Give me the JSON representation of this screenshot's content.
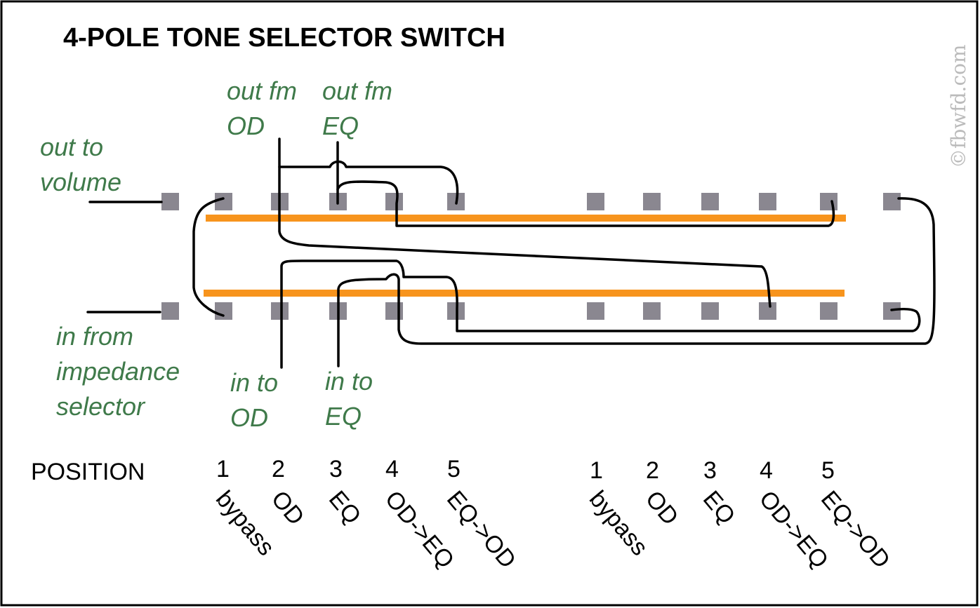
{
  "title": "4-POLE TONE SELECTOR SWITCH",
  "watermark": "©fbwfd.com",
  "labels": {
    "out_to_volume": [
      "out to",
      "volume"
    ],
    "out_fm_od": [
      "out fm",
      "OD"
    ],
    "out_fm_eq": [
      "out fm",
      "EQ"
    ],
    "in_from_impedance": [
      "in from",
      "impedance",
      "selector"
    ],
    "in_to_od": [
      "in to",
      "OD"
    ],
    "in_to_eq": [
      "in to",
      "EQ"
    ]
  },
  "position_label": "POSITION",
  "positions": [
    {
      "num": "1",
      "name": "bypass"
    },
    {
      "num": "2",
      "name": "OD"
    },
    {
      "num": "3",
      "name": "EQ"
    },
    {
      "num": "4",
      "name": "OD->EQ"
    },
    {
      "num": "5",
      "name": "EQ->OD"
    }
  ],
  "colors": {
    "pad": "#8a8790",
    "bar": "#f7941d",
    "label": "#3f7a4a"
  }
}
